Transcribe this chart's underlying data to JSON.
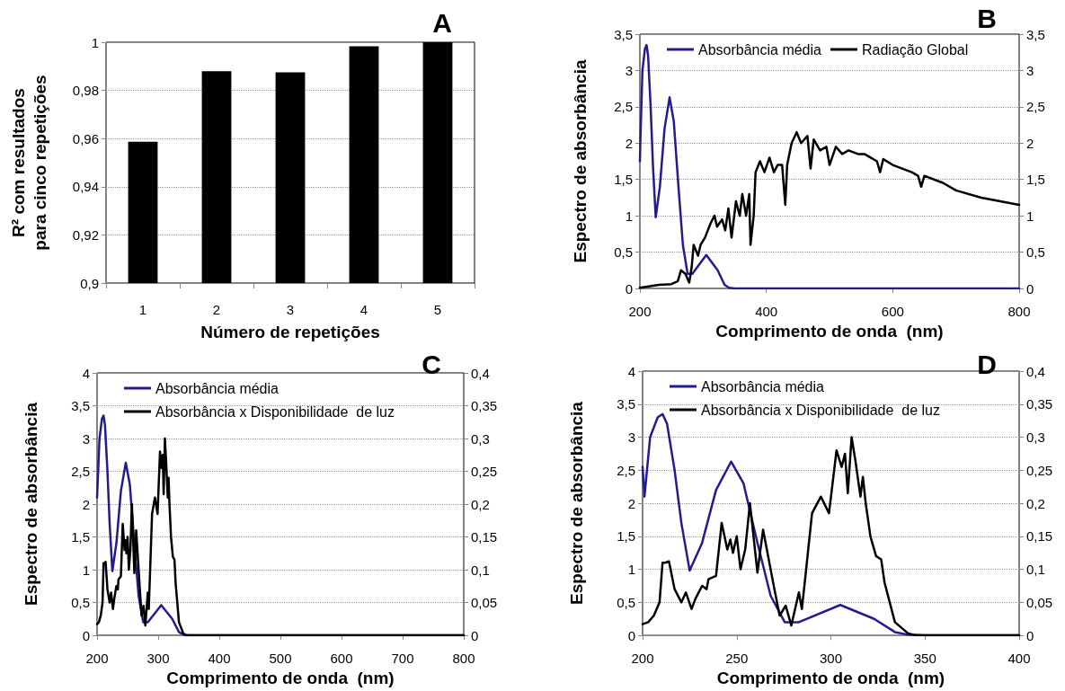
{
  "chart_data": [
    {
      "type": "bar",
      "title": "A",
      "xlabel": "Número de repetições",
      "ylabel": "R² com resultados para cinco repetições",
      "categories": [
        "1",
        "2",
        "3",
        "4",
        "5"
      ],
      "values": [
        0.9587,
        0.988,
        0.9875,
        0.9983,
        1.0
      ],
      "color": "#000000",
      "ylim": [
        0.9,
        1
      ],
      "yticks": [
        {
          "value": 0.9,
          "label": "0,9"
        },
        {
          "value": 0.92,
          "label": "0,92"
        },
        {
          "value": 0.94,
          "label": "0,94"
        },
        {
          "value": 0.96,
          "label": "0,96"
        },
        {
          "value": 0.98,
          "label": "0,98"
        },
        1
      ],
      "grid": "y"
    },
    {
      "type": "line",
      "title": "B",
      "xlabel": "Comprimento de onda  (nm)",
      "ylabel": "Espectro de absorbância",
      "xlim": [
        200,
        800
      ],
      "xticks": [
        200,
        400,
        600,
        800
      ],
      "ylim": [
        0,
        3.5
      ],
      "yticks": [
        0,
        {
          "value": 0.5,
          "label": "0,5"
        },
        1,
        {
          "value": 1.5,
          "label": "1,5"
        },
        2,
        {
          "value": 2.5,
          "label": "2,5"
        },
        3,
        {
          "value": 3.5,
          "label": "3,5"
        }
      ],
      "y2lim": [
        0,
        3.5
      ],
      "y2ticks": [
        0,
        {
          "value": 0.5,
          "label": "0,5"
        },
        1,
        {
          "value": 1.5,
          "label": "1,5"
        },
        2,
        {
          "value": 2.5,
          "label": "2,5"
        },
        3,
        {
          "value": 3.5,
          "label": "3,5"
        }
      ],
      "grid": "y",
      "legend": "top left",
      "series": [
        {
          "name": "Absorbância média",
          "color": "#221c8f",
          "x": [
            200,
            201,
            204,
            208,
            210.6,
            213,
            217,
            220.6,
            225,
            231.6,
            239,
            247,
            253.6,
            261,
            268,
            275.5,
            283,
            305,
            323,
            334,
            341,
            350,
            800
          ],
          "values": [
            1.75,
            2.1,
            3.0,
            3.3,
            3.35,
            3.2,
            2.5,
            1.7,
            0.98,
            1.4,
            2.2,
            2.63,
            2.3,
            1.4,
            0.6,
            0.2,
            0.2,
            0.46,
            0.25,
            0.05,
            0.01,
            0,
            0
          ]
        },
        {
          "name": "Radiação Global",
          "color": "#000000",
          "axis": "y2",
          "x": [
            200,
            230,
            250,
            260,
            265,
            272,
            278,
            282,
            285,
            292,
            296,
            303,
            312,
            318,
            322,
            330,
            335,
            340,
            345,
            352,
            358,
            362,
            368,
            373,
            375,
            380,
            383,
            390,
            397,
            405,
            412,
            418,
            425,
            430,
            433,
            440,
            448,
            455,
            465,
            470,
            475,
            485,
            495,
            500,
            510,
            520,
            530,
            545,
            555,
            565,
            575,
            580,
            585,
            600,
            615,
            630,
            640,
            645,
            650,
            680,
            700,
            740,
            770,
            800
          ],
          "values": [
            0.01,
            0.05,
            0.06,
            0.1,
            0.25,
            0.2,
            0.08,
            0.3,
            0.6,
            0.45,
            0.6,
            0.7,
            0.9,
            1.0,
            0.85,
            0.95,
            0.8,
            1.1,
            0.7,
            1.2,
            1.0,
            1.3,
            1.0,
            1.3,
            0.6,
            1.0,
            1.6,
            1.75,
            1.6,
            1.8,
            1.6,
            1.7,
            1.7,
            1.15,
            1.7,
            2.0,
            2.15,
            2.0,
            2.1,
            1.65,
            2.05,
            1.9,
            1.95,
            1.7,
            1.95,
            1.85,
            1.9,
            1.85,
            1.85,
            1.8,
            1.75,
            1.6,
            1.78,
            1.7,
            1.65,
            1.6,
            1.55,
            1.4,
            1.55,
            1.45,
            1.35,
            1.25,
            1.2,
            1.15
          ]
        }
      ]
    },
    {
      "type": "line",
      "title": "C",
      "xlabel": "Comprimento de onda  (nm)",
      "ylabel": "Espectro de absorbância",
      "xlim": [
        200,
        800
      ],
      "xticks": [
        200,
        300,
        400,
        500,
        600,
        700,
        800
      ],
      "ylim": [
        0,
        4
      ],
      "yticks": [
        0,
        {
          "value": 0.5,
          "label": "0,5"
        },
        1,
        {
          "value": 1.5,
          "label": "1,5"
        },
        2,
        {
          "value": 2.5,
          "label": "2,5"
        },
        3,
        {
          "value": 3.5,
          "label": "3,5"
        },
        4
      ],
      "y2lim": [
        0,
        0.4
      ],
      "y2ticks": [
        0,
        {
          "value": 0.05,
          "label": "0,05"
        },
        {
          "value": 0.1,
          "label": "0,1"
        },
        {
          "value": 0.15,
          "label": "0,15"
        },
        {
          "value": 0.2,
          "label": "0,2"
        },
        {
          "value": 0.25,
          "label": "0,25"
        },
        {
          "value": 0.3,
          "label": "0,3"
        },
        {
          "value": 0.35,
          "label": "0,35"
        },
        {
          "value": 0.4,
          "label": "0,4"
        }
      ],
      "grid": "y",
      "legend": "top left",
      "series": [
        {
          "name": "Absorbância média",
          "color": "#221c8f",
          "x": [
            200,
            201,
            204,
            208,
            210.6,
            213,
            217,
            220.6,
            225,
            231.6,
            239,
            247,
            253.6,
            261,
            268,
            275.5,
            283,
            305,
            323,
            334,
            341,
            350,
            800
          ],
          "values": [
            2.1,
            2.1,
            3.0,
            3.3,
            3.35,
            3.2,
            2.5,
            1.7,
            0.98,
            1.4,
            2.2,
            2.63,
            2.3,
            1.4,
            0.6,
            0.2,
            0.2,
            0.46,
            0.25,
            0.05,
            0.01,
            0,
            0
          ]
        },
        {
          "name": "Absorbância x Disponibilidade  de luz",
          "color": "#000000",
          "axis": "y2",
          "x": [
            200,
            203,
            206,
            209,
            210.6,
            212,
            214,
            217,
            220.6,
            223,
            226,
            228,
            231.6,
            234,
            235,
            239,
            242,
            245,
            246.6,
            248,
            250,
            252,
            254.5,
            257,
            261,
            264,
            270,
            272.8,
            276,
            279,
            283,
            284.6,
            286.5,
            290,
            294.7,
            299,
            303,
            305.7,
            307.5,
            309,
            311,
            313,
            315.7,
            317,
            318.5,
            321,
            324,
            326.7,
            328.5,
            334,
            341,
            345,
            800
          ],
          "values": [
            0.017,
            0.02,
            0.03,
            0.05,
            0.11,
            0.11,
            0.112,
            0.07,
            0.05,
            0.065,
            0.04,
            0.055,
            0.075,
            0.07,
            0.085,
            0.09,
            0.17,
            0.13,
            0.145,
            0.125,
            0.15,
            0.1,
            0.13,
            0.2,
            0.095,
            0.16,
            0.07,
            0.03,
            0.045,
            0.015,
            0.065,
            0.04,
            0.09,
            0.185,
            0.21,
            0.185,
            0.28,
            0.255,
            0.275,
            0.215,
            0.3,
            0.265,
            0.21,
            0.24,
            0.2,
            0.15,
            0.12,
            0.115,
            0.08,
            0.02,
            0.003,
            0,
            0
          ]
        }
      ]
    },
    {
      "type": "line",
      "title": "D",
      "xlabel": "Comprimento de onda  (nm)",
      "ylabel": "Espectro de absorbância",
      "xlim": [
        200,
        400
      ],
      "xticks": [
        200,
        250,
        300,
        350,
        400
      ],
      "ylim": [
        0,
        4
      ],
      "yticks": [
        0,
        {
          "value": 0.5,
          "label": "0,5"
        },
        1,
        {
          "value": 1.5,
          "label": "1,5"
        },
        2,
        {
          "value": 2.5,
          "label": "2,5"
        },
        3,
        {
          "value": 3.5,
          "label": "3,5"
        },
        4
      ],
      "y2lim": [
        0,
        0.4
      ],
      "y2ticks": [
        0,
        {
          "value": 0.05,
          "label": "0,05"
        },
        {
          "value": 0.1,
          "label": "0,1"
        },
        {
          "value": 0.15,
          "label": "0,15"
        },
        {
          "value": 0.2,
          "label": "0,2"
        },
        {
          "value": 0.25,
          "label": "0,25"
        },
        {
          "value": 0.3,
          "label": "0,3"
        },
        {
          "value": 0.35,
          "label": "0,35"
        },
        {
          "value": 0.4,
          "label": "0,4"
        }
      ],
      "grid": "y",
      "legend": "top left",
      "series": [
        {
          "name": "Absorbância média",
          "color": "#221c8f",
          "x": [
            200,
            201,
            204,
            208,
            210.6,
            213,
            217,
            220.6,
            225,
            231.6,
            239,
            247,
            253.6,
            261,
            268,
            275.5,
            283,
            305,
            323,
            334,
            341,
            350,
            400
          ],
          "values": [
            2.55,
            2.1,
            3.0,
            3.3,
            3.35,
            3.2,
            2.5,
            1.7,
            0.98,
            1.4,
            2.2,
            2.63,
            2.3,
            1.4,
            0.6,
            0.2,
            0.2,
            0.46,
            0.25,
            0.05,
            0.01,
            0,
            0
          ]
        },
        {
          "name": "Absorbância x Disponibilidade  de luz",
          "color": "#000000",
          "axis": "y2",
          "x": [
            200,
            203,
            206,
            209,
            210.6,
            212,
            214,
            217,
            220.6,
            223,
            226,
            228,
            231.6,
            234,
            235,
            239,
            242,
            245,
            246.6,
            248,
            250,
            252,
            254.5,
            257,
            261,
            264,
            270,
            272.8,
            276,
            279,
            283,
            284.6,
            286.5,
            290,
            294.7,
            299,
            303,
            305.7,
            307.5,
            309,
            311,
            313,
            315.7,
            317,
            318.5,
            321,
            324,
            326.7,
            328.5,
            334,
            341,
            345,
            400
          ],
          "values": [
            0.017,
            0.02,
            0.03,
            0.05,
            0.11,
            0.11,
            0.112,
            0.07,
            0.05,
            0.065,
            0.04,
            0.055,
            0.075,
            0.07,
            0.085,
            0.09,
            0.17,
            0.13,
            0.145,
            0.125,
            0.15,
            0.1,
            0.13,
            0.2,
            0.095,
            0.16,
            0.07,
            0.03,
            0.045,
            0.015,
            0.065,
            0.04,
            0.09,
            0.185,
            0.21,
            0.185,
            0.28,
            0.255,
            0.275,
            0.215,
            0.3,
            0.265,
            0.21,
            0.24,
            0.2,
            0.15,
            0.12,
            0.115,
            0.08,
            0.02,
            0.003,
            0,
            0
          ]
        }
      ]
    }
  ]
}
